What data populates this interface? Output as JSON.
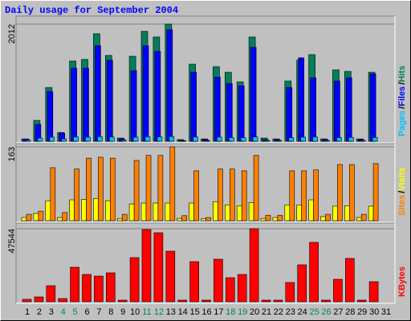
{
  "chart_data": {
    "type": "bar",
    "title": "Daily usage for September 2004",
    "categories": [
      "1",
      "2",
      "3",
      "4",
      "5",
      "6",
      "7",
      "8",
      "9",
      "10",
      "11",
      "12",
      "13",
      "14",
      "15",
      "16",
      "17",
      "18",
      "19",
      "20",
      "21",
      "22",
      "23",
      "24",
      "25",
      "26",
      "27",
      "28",
      "29",
      "30",
      "31"
    ],
    "weekend_color": "#00805c",
    "weekends": [
      3,
      4,
      10,
      11,
      17,
      18,
      24,
      25
    ],
    "legend_separator": "/",
    "panels": [
      {
        "ylim": [
          0,
          2012
        ],
        "yticks": [
          2012
        ],
        "series": [
          {
            "name": "Hits",
            "color": "#00805c",
            "values": [
              40,
              358,
              923,
              150,
              1378,
              1405,
              1846,
              1474,
              55,
              1460,
              1888,
              1791,
              2012,
              28,
              1323,
              40,
              1281,
              1185,
              1020,
              1791,
              55,
              40,
              1034,
              1392,
              1488,
              40,
              1226,
              1199,
              40,
              1185,
              null
            ]
          },
          {
            "name": "Files",
            "color": "#0000ff",
            "values": [
              38,
              289,
              854,
              140,
              1254,
              1254,
              1640,
              1392,
              40,
              1212,
              1640,
              1543,
              1915,
              14,
              1185,
              28,
              1102,
              992,
              951,
              1612,
              28,
              28,
              923,
              1433,
              1089,
              28,
              1034,
              1089,
              28,
              1158,
              null
            ]
          },
          {
            "name": "Pages",
            "color": "#00c0ff",
            "values": [
              20,
              55,
              70,
              40,
              75,
              70,
              80,
              72,
              20,
              70,
              78,
              75,
              80,
              10,
              72,
              12,
              70,
              65,
              62,
              75,
              15,
              14,
              62,
              70,
              72,
              15,
              65,
              66,
              14,
              65,
              null
            ]
          }
        ]
      },
      {
        "ylim": [
          0,
          163
        ],
        "yticks": [
          163
        ],
        "series": [
          {
            "name": "Visits",
            "color": "#ffff00",
            "values": [
              7,
              16,
              44,
              7,
              46,
              47,
              49,
              44,
              5,
              37,
              39,
              39,
              39,
              5,
              39,
              4,
              42,
              35,
              33,
              40,
              5,
              7,
              35,
              35,
              46,
              9,
              32,
              33,
              7,
              32,
              null
            ]
          },
          {
            "name": "Sites",
            "color": "#ff8000",
            "values": [
              14,
              21,
              117,
              18,
              114,
              138,
              140,
              138,
              14,
              133,
              144,
              144,
              163,
              11,
              110,
              7,
              114,
              114,
              110,
              144,
              12,
              12,
              110,
              110,
              112,
              14,
              124,
              124,
              14,
              126,
              null
            ]
          }
        ]
      },
      {
        "ylim": [
          0,
          47544
        ],
        "yticks": [
          47544
        ],
        "series": [
          {
            "name": "KBytes",
            "color": "#ff0000",
            "values": [
              1567,
              3135,
              10450,
              2090,
              22467,
              17764,
              16719,
              18809,
              1045,
              28737,
              47021,
              44931,
              32917,
              1045,
              26126,
              1045,
              27693,
              15674,
              17764,
              47544,
              1045,
              1045,
              12540,
              24036,
              38668,
              1045,
              14629,
              28215,
              1045,
              13063,
              null
            ]
          }
        ]
      }
    ]
  }
}
